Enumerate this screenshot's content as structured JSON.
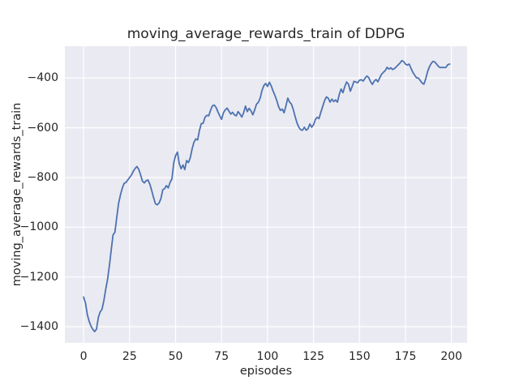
{
  "chart": {
    "title": "moving_average_rewards_train of DDPG",
    "xlabel": "episodes",
    "ylabel": "moving_average_rewards_train"
  },
  "chart_data": {
    "type": "line",
    "title": "moving_average_rewards_train of DDPG",
    "xlabel": "episodes",
    "ylabel": "moving_average_rewards_train",
    "x_ticks": [
      0,
      25,
      50,
      75,
      100,
      125,
      150,
      175,
      200
    ],
    "x_tick_labels": [
      "0",
      "25",
      "50",
      "75",
      "100",
      "125",
      "150",
      "175",
      "200"
    ],
    "y_ticks": [
      -400,
      -600,
      -800,
      -1000,
      -1200,
      -1400
    ],
    "y_tick_labels": [
      "−400",
      "−600",
      "−800",
      "−1000",
      "−1200",
      "−1400"
    ],
    "xlim": [
      -10.2,
      208.5
    ],
    "ylim": [
      -1465,
      -272
    ],
    "grid": true,
    "legend": false,
    "line_color": "#4c72b0",
    "plot_background": "#eaeaf2",
    "grid_color": "#ffffff",
    "text_color": "#262626",
    "series": [
      {
        "name": "moving_average_rewards_train",
        "x_start": 0,
        "x_step": 1,
        "values": [
          -1281,
          -1305,
          -1352,
          -1378,
          -1398,
          -1411,
          -1420,
          -1410,
          -1362,
          -1341,
          -1330,
          -1295,
          -1251,
          -1211,
          -1155,
          -1090,
          -1031,
          -1020,
          -960,
          -905,
          -870,
          -843,
          -824,
          -820,
          -810,
          -800,
          -790,
          -775,
          -764,
          -756,
          -768,
          -790,
          -815,
          -822,
          -813,
          -810,
          -827,
          -852,
          -880,
          -905,
          -910,
          -903,
          -885,
          -850,
          -845,
          -833,
          -842,
          -820,
          -806,
          -740,
          -712,
          -698,
          -745,
          -765,
          -750,
          -768,
          -732,
          -740,
          -720,
          -685,
          -658,
          -645,
          -649,
          -610,
          -583,
          -582,
          -558,
          -550,
          -552,
          -530,
          -512,
          -509,
          -518,
          -536,
          -552,
          -566,
          -540,
          -528,
          -521,
          -533,
          -545,
          -538,
          -548,
          -552,
          -535,
          -545,
          -557,
          -540,
          -513,
          -535,
          -522,
          -532,
          -548,
          -528,
          -505,
          -498,
          -480,
          -450,
          -430,
          -422,
          -434,
          -417,
          -432,
          -452,
          -470,
          -490,
          -515,
          -530,
          -525,
          -540,
          -512,
          -481,
          -497,
          -505,
          -527,
          -555,
          -580,
          -598,
          -608,
          -610,
          -598,
          -610,
          -604,
          -585,
          -598,
          -588,
          -567,
          -558,
          -563,
          -537,
          -514,
          -491,
          -476,
          -481,
          -497,
          -485,
          -495,
          -488,
          -497,
          -466,
          -444,
          -459,
          -434,
          -416,
          -425,
          -453,
          -434,
          -413,
          -416,
          -419,
          -409,
          -407,
          -412,
          -401,
          -392,
          -398,
          -414,
          -426,
          -412,
          -406,
          -415,
          -399,
          -385,
          -377,
          -370,
          -357,
          -364,
          -359,
          -366,
          -362,
          -355,
          -347,
          -340,
          -330,
          -334,
          -344,
          -348,
          -344,
          -361,
          -377,
          -389,
          -399,
          -400,
          -410,
          -420,
          -425,
          -403,
          -375,
          -355,
          -341,
          -333,
          -336,
          -345,
          -354,
          -358,
          -357,
          -358,
          -357,
          -346,
          -344
        ]
      }
    ]
  }
}
